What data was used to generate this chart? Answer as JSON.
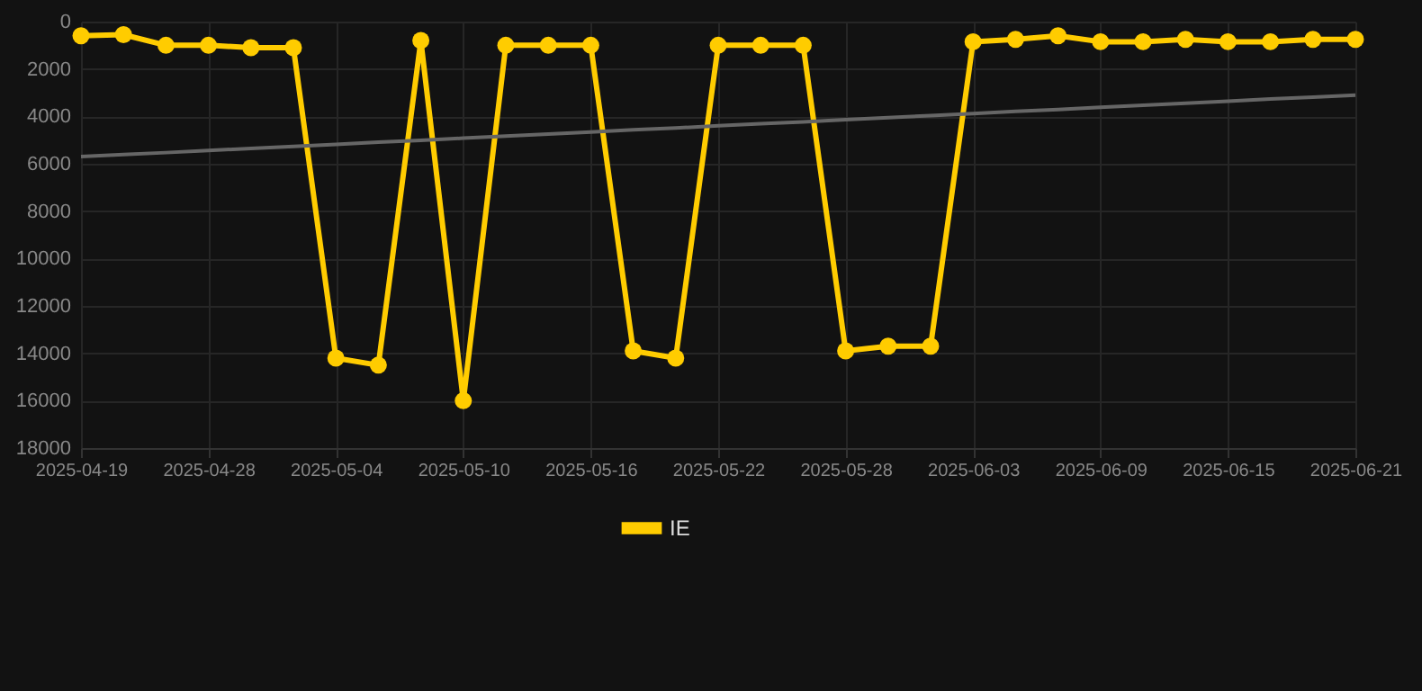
{
  "chart_data": {
    "type": "line",
    "categories": [
      "2025-04-19",
      null,
      null,
      "2025-04-28",
      null,
      null,
      "2025-05-04",
      null,
      null,
      "2025-05-10",
      null,
      null,
      "2025-05-16",
      null,
      null,
      "2025-05-22",
      null,
      null,
      "2025-05-28",
      null,
      null,
      "2025-06-03",
      null,
      null,
      "2025-06-09",
      null,
      null,
      "2025-06-15",
      null,
      null,
      "2025-06-21"
    ],
    "series": [
      {
        "name": "IE",
        "color": "#ffcc00",
        "values": [
          600,
          550,
          1000,
          1000,
          1100,
          1100,
          14200,
          14500,
          800,
          16000,
          1000,
          1000,
          1000,
          13900,
          14200,
          1000,
          1000,
          1000,
          13900,
          13700,
          13700,
          850,
          750,
          600,
          850,
          850,
          750,
          850,
          850,
          750,
          750
        ]
      },
      {
        "type": "line",
        "color": "#666666",
        "values": [
          5700,
          5610,
          5530,
          5440,
          5350,
          5270,
          5180,
          5090,
          5010,
          4920,
          4830,
          4750,
          4660,
          4570,
          4490,
          4400,
          4310,
          4230,
          4140,
          4050,
          3970,
          3880,
          3790,
          3710,
          3620,
          3530,
          3450,
          3360,
          3270,
          3190,
          3100
        ],
        "marker": "none"
      }
    ],
    "ylim": [
      18000,
      0
    ],
    "yticks": [
      0,
      2000,
      4000,
      6000,
      8000,
      10000,
      12000,
      14000,
      16000,
      18000
    ],
    "grid": true,
    "legend": "bottom",
    "marker": "circle",
    "line_style": "solid"
  }
}
